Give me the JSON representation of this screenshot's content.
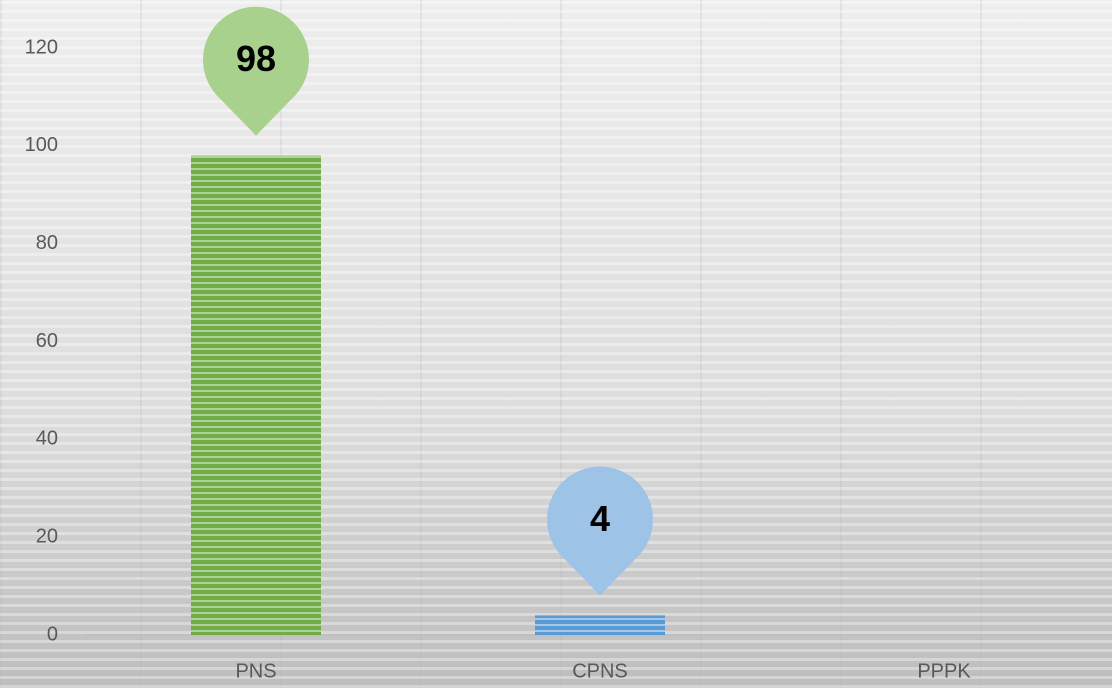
{
  "chart_data": {
    "type": "bar",
    "categories": [
      "PNS",
      "CPNS",
      "PPPK"
    ],
    "values": [
      98,
      4,
      0
    ],
    "colors": [
      "#70ad47",
      "#5b9bd5",
      "#ed7d31"
    ],
    "label_colors": [
      "#a9d18e",
      "#9dc3e6",
      "#f4b183"
    ],
    "ylim": [
      0,
      120
    ],
    "yticks": [
      0,
      20,
      40,
      60,
      80,
      100,
      120
    ],
    "grid": false
  }
}
